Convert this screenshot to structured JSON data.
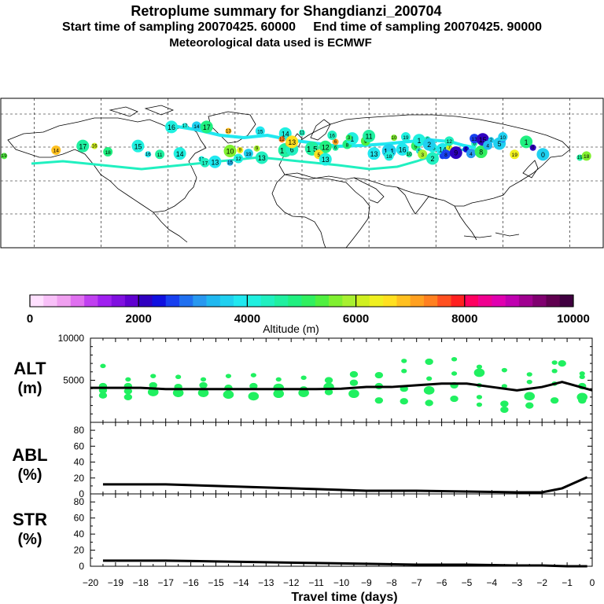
{
  "header": {
    "title": "Retroplume summary for Shangdianzi_200704",
    "start_label": "Start time of sampling 20070425. 60000",
    "end_label": "End time of sampling 20070425. 90000",
    "met_label": "Meteorological data used is ECMWF"
  },
  "colorbar": {
    "ticks": [
      "0",
      "2000",
      "4000",
      "6000",
      "8000",
      "10000"
    ],
    "label": "Altitude (m)",
    "colors": [
      "#ffe0ff",
      "#f8c0f8",
      "#f0a0f0",
      "#e070f0",
      "#c040f0",
      "#a020f0",
      "#8010e0",
      "#6000d0",
      "#3000c0",
      "#1010e0",
      "#1840f0",
      "#2070f0",
      "#2898f0",
      "#20b8f0",
      "#20d0f0",
      "#20e8f0",
      "#20f0e0",
      "#20f0c0",
      "#20f0a0",
      "#20f080",
      "#30f060",
      "#50f040",
      "#80f030",
      "#a8f030",
      "#d0f020",
      "#f0f020",
      "#ffe020",
      "#ffc020",
      "#ffa020",
      "#ff8020",
      "#ff5020",
      "#ff2020",
      "#ff0060",
      "#f00090",
      "#e000b0",
      "#c000b0",
      "#a00090",
      "#800070",
      "#600050",
      "#400040"
    ]
  },
  "map": {
    "blobs": [
      {
        "lon": -178,
        "lat": 30,
        "label": "19",
        "h": 5300
      },
      {
        "lon": -147,
        "lat": 37,
        "label": "14",
        "h": 6800
      },
      {
        "lon": -131,
        "lat": 42,
        "label": "17",
        "h": 4700
      },
      {
        "lon": -124,
        "lat": 42,
        "label": "16",
        "h": 6200
      },
      {
        "lon": -116,
        "lat": 35,
        "label": "18",
        "h": 4800
      },
      {
        "lon": -98,
        "lat": 42,
        "label": "15",
        "h": 4000
      },
      {
        "lon": -92,
        "lat": 32,
        "label": "16",
        "h": 3900
      },
      {
        "lon": -85,
        "lat": 32,
        "label": "11",
        "h": 4500
      },
      {
        "lon": -73,
        "lat": 33,
        "label": "14",
        "h": 4200
      },
      {
        "lon": -60,
        "lat": 26,
        "label": "12",
        "h": 4100
      },
      {
        "lon": -58,
        "lat": 22,
        "label": "17",
        "h": 4300
      },
      {
        "lon": -52,
        "lat": 23,
        "label": "13",
        "h": 3800
      },
      {
        "lon": -43,
        "lat": 22,
        "label": "15",
        "h": 3400
      },
      {
        "lon": -38,
        "lat": 27,
        "label": "12",
        "h": 4000
      },
      {
        "lon": -43,
        "lat": 36,
        "label": "10",
        "h": 5700
      },
      {
        "lon": -37,
        "lat": 37,
        "label": "9",
        "h": 6300
      },
      {
        "lon": -32,
        "lat": 33,
        "label": "19",
        "h": 3600
      },
      {
        "lon": -24,
        "lat": 28,
        "label": "13",
        "h": 4300
      },
      {
        "lon": -27,
        "lat": 39,
        "label": "9",
        "h": 5800
      },
      {
        "lon": -10,
        "lat": 37,
        "label": "1 2",
        "h": 4500
      },
      {
        "lon": -6,
        "lat": 38,
        "label": "6",
        "h": 4300
      },
      {
        "lon": -8,
        "lat": 45,
        "label": "8",
        "h": 7200
      },
      {
        "lon": 6,
        "lat": 39,
        "label": "1 5",
        "h": 4600
      },
      {
        "lon": 14,
        "lat": 41,
        "label": "12",
        "h": 4900
      },
      {
        "lon": 20,
        "lat": 40,
        "label": "6",
        "h": 4700
      },
      {
        "lon": 27,
        "lat": 44,
        "label": "8",
        "h": 4900
      },
      {
        "lon": 30,
        "lat": 51,
        "label": "1",
        "h": 4000
      },
      {
        "lon": 20,
        "lat": 47,
        "label": "6",
        "h": 7000
      },
      {
        "lon": 10,
        "lat": 32,
        "label": "5",
        "h": 6500
      },
      {
        "lon": 14,
        "lat": 26,
        "label": "13",
        "h": 4000
      },
      {
        "lon": 28,
        "lat": 52,
        "label": "3",
        "h": 5000
      },
      {
        "lon": 38,
        "lat": 48,
        "label": "9",
        "h": 5300
      },
      {
        "lon": 43,
        "lat": 33,
        "label": "13",
        "h": 3900
      },
      {
        "lon": 52,
        "lat": 36,
        "label": "1 1",
        "h": 3600
      },
      {
        "lon": 52,
        "lat": 30,
        "label": "18",
        "h": 4100
      },
      {
        "lon": 60,
        "lat": 38,
        "label": "16",
        "h": 3800
      },
      {
        "lon": 64,
        "lat": 32,
        "label": "10",
        "h": 4600
      },
      {
        "lon": 68,
        "lat": 42,
        "label": "9",
        "h": 5100
      },
      {
        "lon": 70,
        "lat": 49,
        "label": "1",
        "h": 4000
      },
      {
        "lon": 75,
        "lat": 50,
        "label": "6",
        "h": 4300
      },
      {
        "lon": 78,
        "lat": 40,
        "label": "15",
        "h": 4200
      },
      {
        "lon": 84,
        "lat": 38,
        "label": "14",
        "h": 3900
      },
      {
        "lon": 88,
        "lat": 40,
        "label": "7",
        "h": 6200
      },
      {
        "lon": 88,
        "lat": 48,
        "label": "12",
        "h": 4400
      },
      {
        "lon": 76,
        "lat": 44,
        "label": "2",
        "h": 3500
      },
      {
        "lon": 70,
        "lat": 36,
        "label": "5",
        "h": 4100
      },
      {
        "lon": 72,
        "lat": 32,
        "label": "3",
        "h": 5800
      },
      {
        "lon": 78,
        "lat": 27,
        "label": "2",
        "h": 4400
      },
      {
        "lon": 84,
        "lat": 30,
        "label": "9",
        "h": 2700
      },
      {
        "lon": 86,
        "lat": 32,
        "label": "8",
        "h": 2500
      },
      {
        "lon": 92,
        "lat": 34,
        "label": "9",
        "h": 2000
      },
      {
        "lon": 98,
        "lat": 38,
        "label": "6",
        "h": 2300
      },
      {
        "lon": 101,
        "lat": 33,
        "label": "4",
        "h": 3200
      },
      {
        "lon": 107,
        "lat": 35,
        "label": "8",
        "h": 5200
      },
      {
        "lon": 103,
        "lat": 45,
        "label": "6",
        "h": 4300
      },
      {
        "lon": 103,
        "lat": 51,
        "label": "13",
        "h": 2600
      },
      {
        "lon": 108,
        "lat": 50,
        "label": "15",
        "h": 2200
      },
      {
        "lon": 113,
        "lat": 49,
        "label": "2",
        "h": 3700
      },
      {
        "lon": 111,
        "lat": 43,
        "label": "4",
        "h": 3300
      },
      {
        "lon": 118,
        "lat": 45,
        "label": "5",
        "h": 3600
      },
      {
        "lon": 120,
        "lat": 50,
        "label": "5",
        "h": 2800
      },
      {
        "lon": 120,
        "lat": 53,
        "label": "10",
        "h": 3700
      },
      {
        "lon": 134,
        "lat": 47,
        "label": "1",
        "h": 4800
      },
      {
        "lon": 138,
        "lat": 40,
        "label": "0",
        "h": 2100
      },
      {
        "lon": 127,
        "lat": 32,
        "label": "19",
        "h": 6400
      },
      {
        "lon": 144,
        "lat": 32,
        "label": "0",
        "h": 3600
      },
      {
        "lon": 166,
        "lat": 28,
        "label": "19",
        "h": 4600
      },
      {
        "lon": 170,
        "lat": 30,
        "label": "18",
        "h": 5600
      },
      {
        "lon": -78,
        "lat": 65,
        "label": "16",
        "h": 4200
      },
      {
        "lon": -70,
        "lat": 66,
        "label": "17",
        "h": 4200
      },
      {
        "lon": -63,
        "lat": 66,
        "label": "14",
        "h": 3600
      },
      {
        "lon": -57,
        "lat": 65,
        "label": "17",
        "h": 4800
      },
      {
        "lon": -44,
        "lat": 60,
        "label": "13",
        "h": 6800
      },
      {
        "lon": -25,
        "lat": 60,
        "label": "15",
        "h": 3900
      },
      {
        "lon": -10,
        "lat": 57,
        "label": "14",
        "h": 4000
      },
      {
        "lon": 0,
        "lat": 58,
        "label": "11",
        "h": 4400
      },
      {
        "lon": 18,
        "lat": 55,
        "label": "16",
        "h": 4300
      },
      {
        "lon": 40,
        "lat": 54,
        "label": "11",
        "h": 4700
      },
      {
        "lon": 55,
        "lat": 52,
        "label": "10",
        "h": 5500
      },
      {
        "lon": 62,
        "lat": 53,
        "label": "19",
        "h": 4000
      },
      {
        "lon": -6,
        "lat": 47,
        "label": "13",
        "h": 6600
      },
      {
        "lon": -12,
        "lat": 50,
        "label": "12",
        "h": 7300
      }
    ]
  },
  "panels": {
    "alt_label": [
      "ALT",
      "(m)"
    ],
    "abl_label": [
      "ABL",
      "(%)"
    ],
    "str_label": [
      "STR",
      "(%)"
    ],
    "x_axis_label": "Travel time (days)"
  },
  "chart_data": [
    {
      "type": "scatter",
      "title": "ALT (m)",
      "xlabel": "Travel time (days)",
      "ylabel": "ALT (m)",
      "xlim": [
        -20,
        0
      ],
      "ylim": [
        0,
        10000
      ],
      "yticks": [
        "10000",
        "5000"
      ],
      "line": {
        "x": [
          -20,
          -19,
          -18,
          -17,
          -16,
          -15,
          -14,
          -13,
          -12,
          -11,
          -10,
          -9,
          -8,
          -7,
          -6,
          -5,
          -4,
          -3,
          -2,
          -1.2,
          0
        ],
        "y": [
          4100,
          4100,
          4100,
          3950,
          3950,
          3950,
          3950,
          3950,
          3950,
          3950,
          4000,
          4200,
          4200,
          4400,
          4600,
          4600,
          4200,
          3800,
          4200,
          4800,
          3800
        ]
      },
      "points": [
        {
          "x": -19.5,
          "y": 6700,
          "s": 1
        },
        {
          "x": -19.5,
          "y": 4300,
          "s": 2
        },
        {
          "x": -19.5,
          "y": 3800,
          "s": 2
        },
        {
          "x": -19.5,
          "y": 3200,
          "s": 2
        },
        {
          "x": -18.5,
          "y": 5100,
          "s": 1
        },
        {
          "x": -18.5,
          "y": 4300,
          "s": 2
        },
        {
          "x": -18.5,
          "y": 3700,
          "s": 2
        },
        {
          "x": -18.5,
          "y": 3000,
          "s": 2
        },
        {
          "x": -17.5,
          "y": 5500,
          "s": 1
        },
        {
          "x": -17.5,
          "y": 4400,
          "s": 2
        },
        {
          "x": -17.5,
          "y": 3600,
          "s": 3
        },
        {
          "x": -16.5,
          "y": 5400,
          "s": 1
        },
        {
          "x": -16.5,
          "y": 4200,
          "s": 2
        },
        {
          "x": -16.5,
          "y": 3500,
          "s": 3
        },
        {
          "x": -15.5,
          "y": 5100,
          "s": 1
        },
        {
          "x": -15.5,
          "y": 4400,
          "s": 2
        },
        {
          "x": -15.5,
          "y": 3500,
          "s": 3
        },
        {
          "x": -14.5,
          "y": 5500,
          "s": 1
        },
        {
          "x": -14.5,
          "y": 4100,
          "s": 2
        },
        {
          "x": -14.5,
          "y": 3300,
          "s": 3
        },
        {
          "x": -13.5,
          "y": 5600,
          "s": 1
        },
        {
          "x": -13.5,
          "y": 4300,
          "s": 2
        },
        {
          "x": -13.5,
          "y": 3100,
          "s": 3
        },
        {
          "x": -12.5,
          "y": 5100,
          "s": 1
        },
        {
          "x": -12.5,
          "y": 4100,
          "s": 3
        },
        {
          "x": -12.5,
          "y": 3400,
          "s": 3
        },
        {
          "x": -11.5,
          "y": 5300,
          "s": 1
        },
        {
          "x": -11.5,
          "y": 3900,
          "s": 2
        },
        {
          "x": -11.5,
          "y": 3500,
          "s": 3
        },
        {
          "x": -10.5,
          "y": 5000,
          "s": 2
        },
        {
          "x": -10.5,
          "y": 4200,
          "s": 3
        },
        {
          "x": -10.5,
          "y": 3600,
          "s": 2
        },
        {
          "x": -9.5,
          "y": 5700,
          "s": 2
        },
        {
          "x": -9.5,
          "y": 4700,
          "s": 2
        },
        {
          "x": -9.5,
          "y": 3400,
          "s": 3
        },
        {
          "x": -8.5,
          "y": 5600,
          "s": 2
        },
        {
          "x": -8.5,
          "y": 4300,
          "s": 2
        },
        {
          "x": -8.5,
          "y": 2600,
          "s": 2
        },
        {
          "x": -7.5,
          "y": 7300,
          "s": 1
        },
        {
          "x": -7.5,
          "y": 6100,
          "s": 1
        },
        {
          "x": -7.5,
          "y": 4000,
          "s": 2
        },
        {
          "x": -7.5,
          "y": 2500,
          "s": 2
        },
        {
          "x": -6.5,
          "y": 7200,
          "s": 2
        },
        {
          "x": -6.5,
          "y": 5200,
          "s": 1
        },
        {
          "x": -6.5,
          "y": 3800,
          "s": 3
        },
        {
          "x": -6.5,
          "y": 2300,
          "s": 2
        },
        {
          "x": -5.5,
          "y": 7500,
          "s": 1
        },
        {
          "x": -5.5,
          "y": 5800,
          "s": 1
        },
        {
          "x": -5.5,
          "y": 4400,
          "s": 2
        },
        {
          "x": -5.5,
          "y": 2800,
          "s": 2
        },
        {
          "x": -4.5,
          "y": 6600,
          "s": 1
        },
        {
          "x": -4.5,
          "y": 5900,
          "s": 3
        },
        {
          "x": -4.5,
          "y": 4400,
          "s": 1
        },
        {
          "x": -4.5,
          "y": 3000,
          "s": 1
        },
        {
          "x": -4.5,
          "y": 2100,
          "s": 1
        },
        {
          "x": -3.5,
          "y": 6200,
          "s": 1
        },
        {
          "x": -3.5,
          "y": 4300,
          "s": 1
        },
        {
          "x": -3.5,
          "y": 2200,
          "s": 2
        },
        {
          "x": -3.5,
          "y": 1500,
          "s": 2
        },
        {
          "x": -2.5,
          "y": 5700,
          "s": 1
        },
        {
          "x": -2.5,
          "y": 4800,
          "s": 1
        },
        {
          "x": -2.5,
          "y": 3100,
          "s": 3
        },
        {
          "x": -2.5,
          "y": 2000,
          "s": 2
        },
        {
          "x": -1.5,
          "y": 7100,
          "s": 1
        },
        {
          "x": -1.5,
          "y": 6100,
          "s": 1
        },
        {
          "x": -1.5,
          "y": 4600,
          "s": 1
        },
        {
          "x": -1.5,
          "y": 2600,
          "s": 2
        },
        {
          "x": -1.2,
          "y": 7000,
          "s": 2
        },
        {
          "x": -0.4,
          "y": 5400,
          "s": 1
        },
        {
          "x": -0.4,
          "y": 4300,
          "s": 2
        },
        {
          "x": -0.4,
          "y": 3000,
          "s": 3
        },
        {
          "x": -0.4,
          "y": 2600,
          "s": 2
        },
        {
          "x": -0.4,
          "y": 5800,
          "s": 1
        }
      ],
      "point_color": "#20f060"
    },
    {
      "type": "line",
      "title": "ABL (%)",
      "ylabel": "ABL (%)",
      "xlim": [
        -20,
        0
      ],
      "ylim": [
        0,
        90
      ],
      "yticks": [
        "80",
        "60",
        "40",
        "20",
        "0"
      ],
      "x": [
        -19.5,
        -17,
        -15,
        -13,
        -11,
        -9,
        -7,
        -5,
        -3,
        -2,
        -1.2,
        -0.2
      ],
      "y": [
        12,
        12,
        10,
        8,
        6,
        4,
        4,
        3,
        2,
        2,
        7,
        21
      ]
    },
    {
      "type": "line",
      "title": "STR (%)",
      "ylabel": "STR (%)",
      "xlabel": "Travel time (days)",
      "xlim": [
        -20,
        0
      ],
      "ylim": [
        0,
        90
      ],
      "yticks": [
        "80",
        "60",
        "40",
        "20",
        "0"
      ],
      "xticks": [
        "−20",
        "−19",
        "−18",
        "−17",
        "−16",
        "−15",
        "−14",
        "−13",
        "−12",
        "−11",
        "−10",
        "−9",
        "−8",
        "−7",
        "−6",
        "−5",
        "−4",
        "−3",
        "−2",
        "−1",
        "0"
      ],
      "x": [
        -19.5,
        -17,
        -15,
        -13,
        -11,
        -9,
        -7,
        -5,
        -3,
        -2,
        -1,
        -0.2
      ],
      "y": [
        7,
        7,
        6,
        5,
        4,
        3,
        2,
        2,
        1,
        1,
        0,
        0
      ]
    }
  ]
}
